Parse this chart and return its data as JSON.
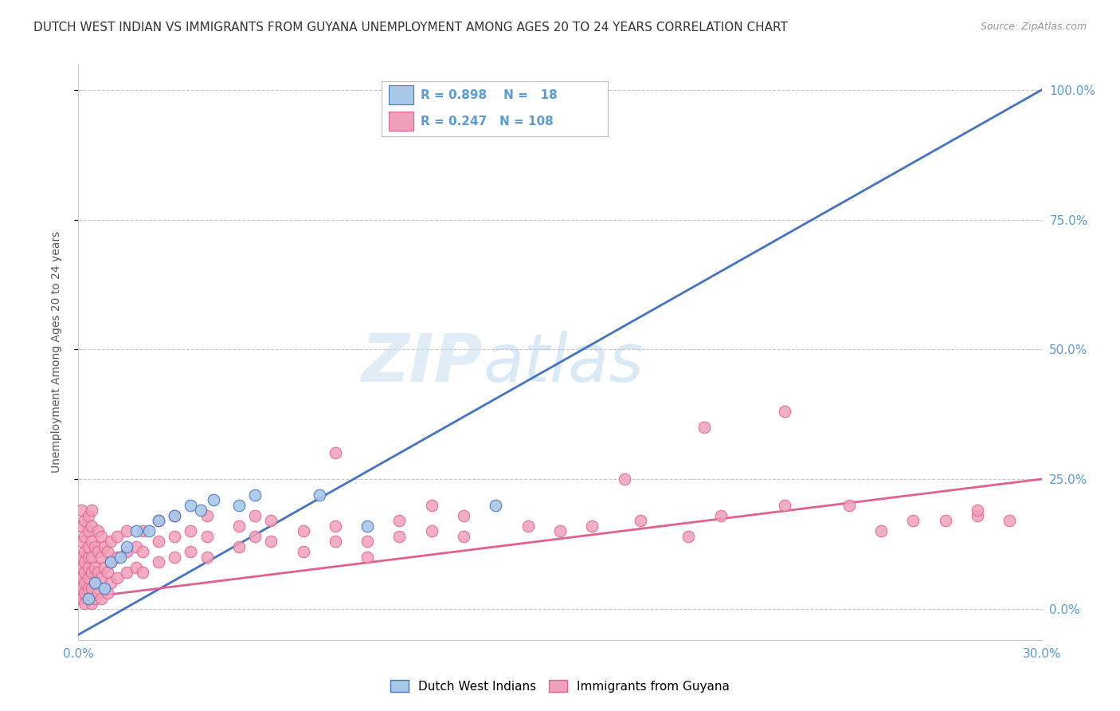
{
  "title": "DUTCH WEST INDIAN VS IMMIGRANTS FROM GUYANA UNEMPLOYMENT AMONG AGES 20 TO 24 YEARS CORRELATION CHART",
  "source": "Source: ZipAtlas.com",
  "ylabel": "Unemployment Among Ages 20 to 24 years",
  "xlim": [
    0.0,
    0.3
  ],
  "ylim": [
    -0.06,
    1.05
  ],
  "ytick_values": [
    0.0,
    0.25,
    0.5,
    0.75,
    1.0
  ],
  "ytick_labels": [
    "0.0%",
    "25.0%",
    "50.0%",
    "75.0%",
    "100.0%"
  ],
  "xtick_values": [
    0.0,
    0.05,
    0.1,
    0.15,
    0.2,
    0.25,
    0.3
  ],
  "xtick_labels": [
    "0.0%",
    "",
    "",
    "",
    "",
    "",
    "30.0%"
  ],
  "legend_box": {
    "R_blue": 0.898,
    "N_blue": 18,
    "R_pink": 0.247,
    "N_pink": 108
  },
  "watermark_zip": "ZIP",
  "watermark_atlas": "atlas",
  "blue_line_color": "#4472c4",
  "pink_line_color": "#e06090",
  "grid_color": "#c8c8c8",
  "tick_color": "#5b9bd5",
  "background_color": "#ffffff",
  "blue_scatter_color": "#a8c8e8",
  "blue_scatter_edge": "#4472c4",
  "pink_scatter_color": "#f0a0b8",
  "pink_scatter_edge": "#e06090",
  "blue_pts": [
    [
      0.003,
      0.02
    ],
    [
      0.005,
      0.05
    ],
    [
      0.008,
      0.04
    ],
    [
      0.01,
      0.09
    ],
    [
      0.013,
      0.1
    ],
    [
      0.015,
      0.12
    ],
    [
      0.018,
      0.15
    ],
    [
      0.022,
      0.15
    ],
    [
      0.025,
      0.17
    ],
    [
      0.03,
      0.18
    ],
    [
      0.035,
      0.2
    ],
    [
      0.038,
      0.19
    ],
    [
      0.042,
      0.21
    ],
    [
      0.05,
      0.2
    ],
    [
      0.055,
      0.22
    ],
    [
      0.075,
      0.22
    ],
    [
      0.09,
      0.16
    ],
    [
      0.13,
      0.2
    ]
  ],
  "blue_line_x0": 0.0,
  "blue_line_y0": -0.05,
  "blue_line_x1": 0.3,
  "blue_line_y1": 1.0,
  "pink_line_x0": 0.0,
  "pink_line_y0": 0.02,
  "pink_line_x1": 0.3,
  "pink_line_y1": 0.25,
  "pink_pts": [
    [
      0.001,
      0.02
    ],
    [
      0.001,
      0.04
    ],
    [
      0.001,
      0.06
    ],
    [
      0.001,
      0.08
    ],
    [
      0.001,
      0.1
    ],
    [
      0.001,
      0.13
    ],
    [
      0.001,
      0.16
    ],
    [
      0.001,
      0.19
    ],
    [
      0.002,
      0.01
    ],
    [
      0.002,
      0.03
    ],
    [
      0.002,
      0.05
    ],
    [
      0.002,
      0.07
    ],
    [
      0.002,
      0.09
    ],
    [
      0.002,
      0.11
    ],
    [
      0.002,
      0.14
    ],
    [
      0.002,
      0.17
    ],
    [
      0.003,
      0.02
    ],
    [
      0.003,
      0.04
    ],
    [
      0.003,
      0.06
    ],
    [
      0.003,
      0.08
    ],
    [
      0.003,
      0.1
    ],
    [
      0.003,
      0.12
    ],
    [
      0.003,
      0.15
    ],
    [
      0.003,
      0.18
    ],
    [
      0.004,
      0.01
    ],
    [
      0.004,
      0.04
    ],
    [
      0.004,
      0.07
    ],
    [
      0.004,
      0.1
    ],
    [
      0.004,
      0.13
    ],
    [
      0.004,
      0.16
    ],
    [
      0.004,
      0.19
    ],
    [
      0.005,
      0.02
    ],
    [
      0.005,
      0.05
    ],
    [
      0.005,
      0.08
    ],
    [
      0.005,
      0.12
    ],
    [
      0.006,
      0.03
    ],
    [
      0.006,
      0.07
    ],
    [
      0.006,
      0.11
    ],
    [
      0.006,
      0.15
    ],
    [
      0.007,
      0.02
    ],
    [
      0.007,
      0.06
    ],
    [
      0.007,
      0.1
    ],
    [
      0.007,
      0.14
    ],
    [
      0.008,
      0.04
    ],
    [
      0.008,
      0.08
    ],
    [
      0.008,
      0.12
    ],
    [
      0.009,
      0.03
    ],
    [
      0.009,
      0.07
    ],
    [
      0.009,
      0.11
    ],
    [
      0.01,
      0.05
    ],
    [
      0.01,
      0.09
    ],
    [
      0.01,
      0.13
    ],
    [
      0.012,
      0.06
    ],
    [
      0.012,
      0.1
    ],
    [
      0.012,
      0.14
    ],
    [
      0.015,
      0.07
    ],
    [
      0.015,
      0.11
    ],
    [
      0.015,
      0.15
    ],
    [
      0.018,
      0.08
    ],
    [
      0.018,
      0.12
    ],
    [
      0.02,
      0.07
    ],
    [
      0.02,
      0.11
    ],
    [
      0.02,
      0.15
    ],
    [
      0.025,
      0.09
    ],
    [
      0.025,
      0.13
    ],
    [
      0.025,
      0.17
    ],
    [
      0.03,
      0.1
    ],
    [
      0.03,
      0.14
    ],
    [
      0.03,
      0.18
    ],
    [
      0.035,
      0.11
    ],
    [
      0.035,
      0.15
    ],
    [
      0.04,
      0.1
    ],
    [
      0.04,
      0.14
    ],
    [
      0.04,
      0.18
    ],
    [
      0.05,
      0.12
    ],
    [
      0.05,
      0.16
    ],
    [
      0.055,
      0.14
    ],
    [
      0.055,
      0.18
    ],
    [
      0.06,
      0.13
    ],
    [
      0.06,
      0.17
    ],
    [
      0.07,
      0.15
    ],
    [
      0.07,
      0.11
    ],
    [
      0.08,
      0.13
    ],
    [
      0.08,
      0.16
    ],
    [
      0.09,
      0.13
    ],
    [
      0.09,
      0.1
    ],
    [
      0.1,
      0.14
    ],
    [
      0.1,
      0.17
    ],
    [
      0.11,
      0.15
    ],
    [
      0.11,
      0.2
    ],
    [
      0.12,
      0.14
    ],
    [
      0.12,
      0.18
    ],
    [
      0.14,
      0.16
    ],
    [
      0.15,
      0.15
    ],
    [
      0.16,
      0.16
    ],
    [
      0.175,
      0.17
    ],
    [
      0.19,
      0.14
    ],
    [
      0.2,
      0.18
    ],
    [
      0.22,
      0.2
    ],
    [
      0.24,
      0.2
    ],
    [
      0.26,
      0.17
    ],
    [
      0.27,
      0.17
    ],
    [
      0.28,
      0.18
    ],
    [
      0.29,
      0.17
    ],
    [
      0.08,
      0.3
    ],
    [
      0.17,
      0.25
    ],
    [
      0.195,
      0.35
    ],
    [
      0.22,
      0.38
    ],
    [
      0.25,
      0.15
    ],
    [
      0.28,
      0.19
    ]
  ]
}
